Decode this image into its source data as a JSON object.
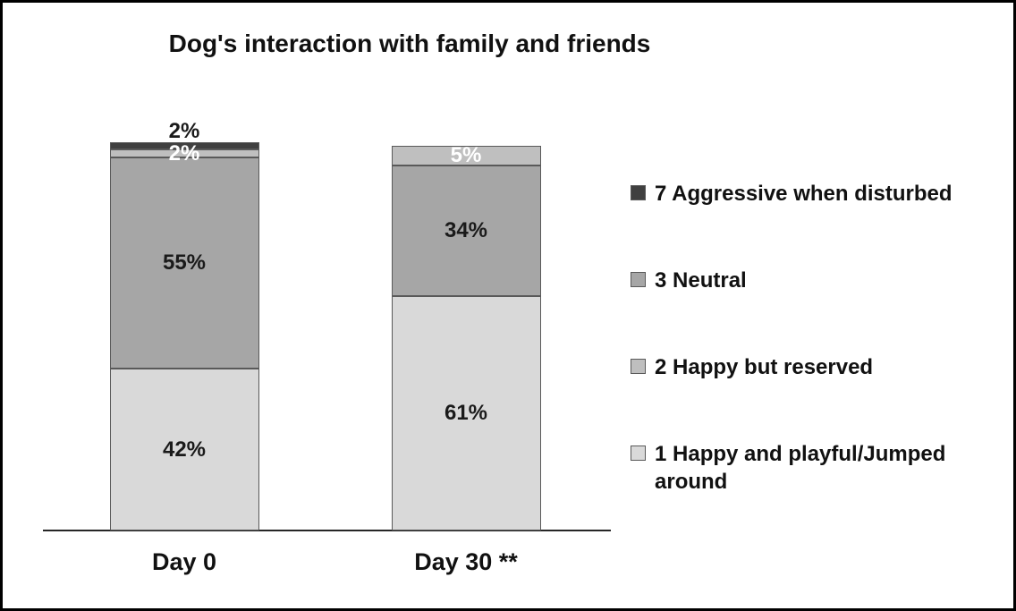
{
  "figure": {
    "background": "#ffffff",
    "border_color": "#000000"
  },
  "chart_data": {
    "type": "bar",
    "stacked": true,
    "stack_order": "bottom-to-top",
    "title": "Dog's interaction with family and friends",
    "categories": [
      "Day 0",
      "Day 30 **"
    ],
    "series": [
      {
        "name": "1 Happy and playful/Jumped around",
        "color": "#d9d9d9",
        "label_color": "#1a1a1a",
        "values": [
          42,
          61
        ]
      },
      {
        "name": "3 Neutral",
        "color": "#a6a6a6",
        "label_color": "#1a1a1a",
        "values": [
          55,
          34
        ]
      },
      {
        "name": "2 Happy but reserved",
        "color": "#bfbfbf",
        "label_color": "#ffffff",
        "values": [
          2,
          5
        ]
      },
      {
        "name": "7 Aggressive when disturbed",
        "color": "#404040",
        "label_color": "#1a1a1a",
        "label_position": "above",
        "values": [
          2,
          0
        ]
      }
    ],
    "value_suffix": "%",
    "ylim": [
      0,
      101
    ],
    "grid": false,
    "legend_position": "right",
    "legend_entries": [
      {
        "label": "7 Aggressive when disturbed",
        "color": "#404040"
      },
      {
        "label": "3 Neutral",
        "color": "#a6a6a6"
      },
      {
        "label": "2 Happy but reserved",
        "color": "#bfbfbf"
      },
      {
        "label": "1 Happy and playful/Jumped around",
        "color": "#d9d9d9"
      }
    ]
  }
}
